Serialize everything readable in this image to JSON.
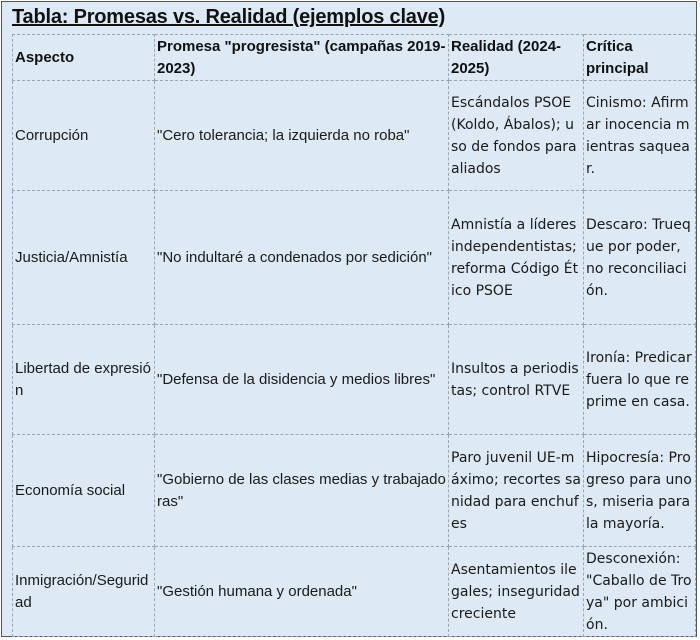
{
  "title": "Tabla: Promesas vs. Realidad (ejemplos clave)",
  "headers": [
    "Aspecto",
    "Promesa \"progresista\" (campañas 2019-2023)",
    "Realidad (2024-2025)",
    "Crítica principal"
  ],
  "rows": [
    [
      "Corrupción",
      "\"Cero tolerancia; la izquierda no roba\"",
      "Escándalos PSOE (Koldo, Ábalos); uso de fondos para aliados",
      "Cinismo: Afirmar inocencia mientras saquear."
    ],
    [
      "Justicia/Amnistía",
      "\"No indultaré a condenados por sedición\"",
      "Amnistía a líderes independentistas; reforma Código Ético PSOE",
      "Descaro: Trueque por poder, no reconciliación."
    ],
    [
      "Libertad de expresión",
      "\"Defensa de la disidencia y medios libres\"",
      "Insultos a periodistas; control RTVE",
      "Ironía: Predicar fuera lo que reprime en casa."
    ],
    [
      "Economía social",
      "\"Gobierno de las clases medias y trabajadoras\"",
      "Paro juvenil UE-máximo; recortes sanidad para enchufes",
      "Hipocresía: Progreso para unos, miseria para la mayoría."
    ],
    [
      "Inmigración/Seguridad",
      "\"Gestión humana y ordenada\"",
      "Asentamientos ilegales; inseguridad creciente",
      "Desconexión: \"Caballo de Troya\" por ambición."
    ]
  ]
}
